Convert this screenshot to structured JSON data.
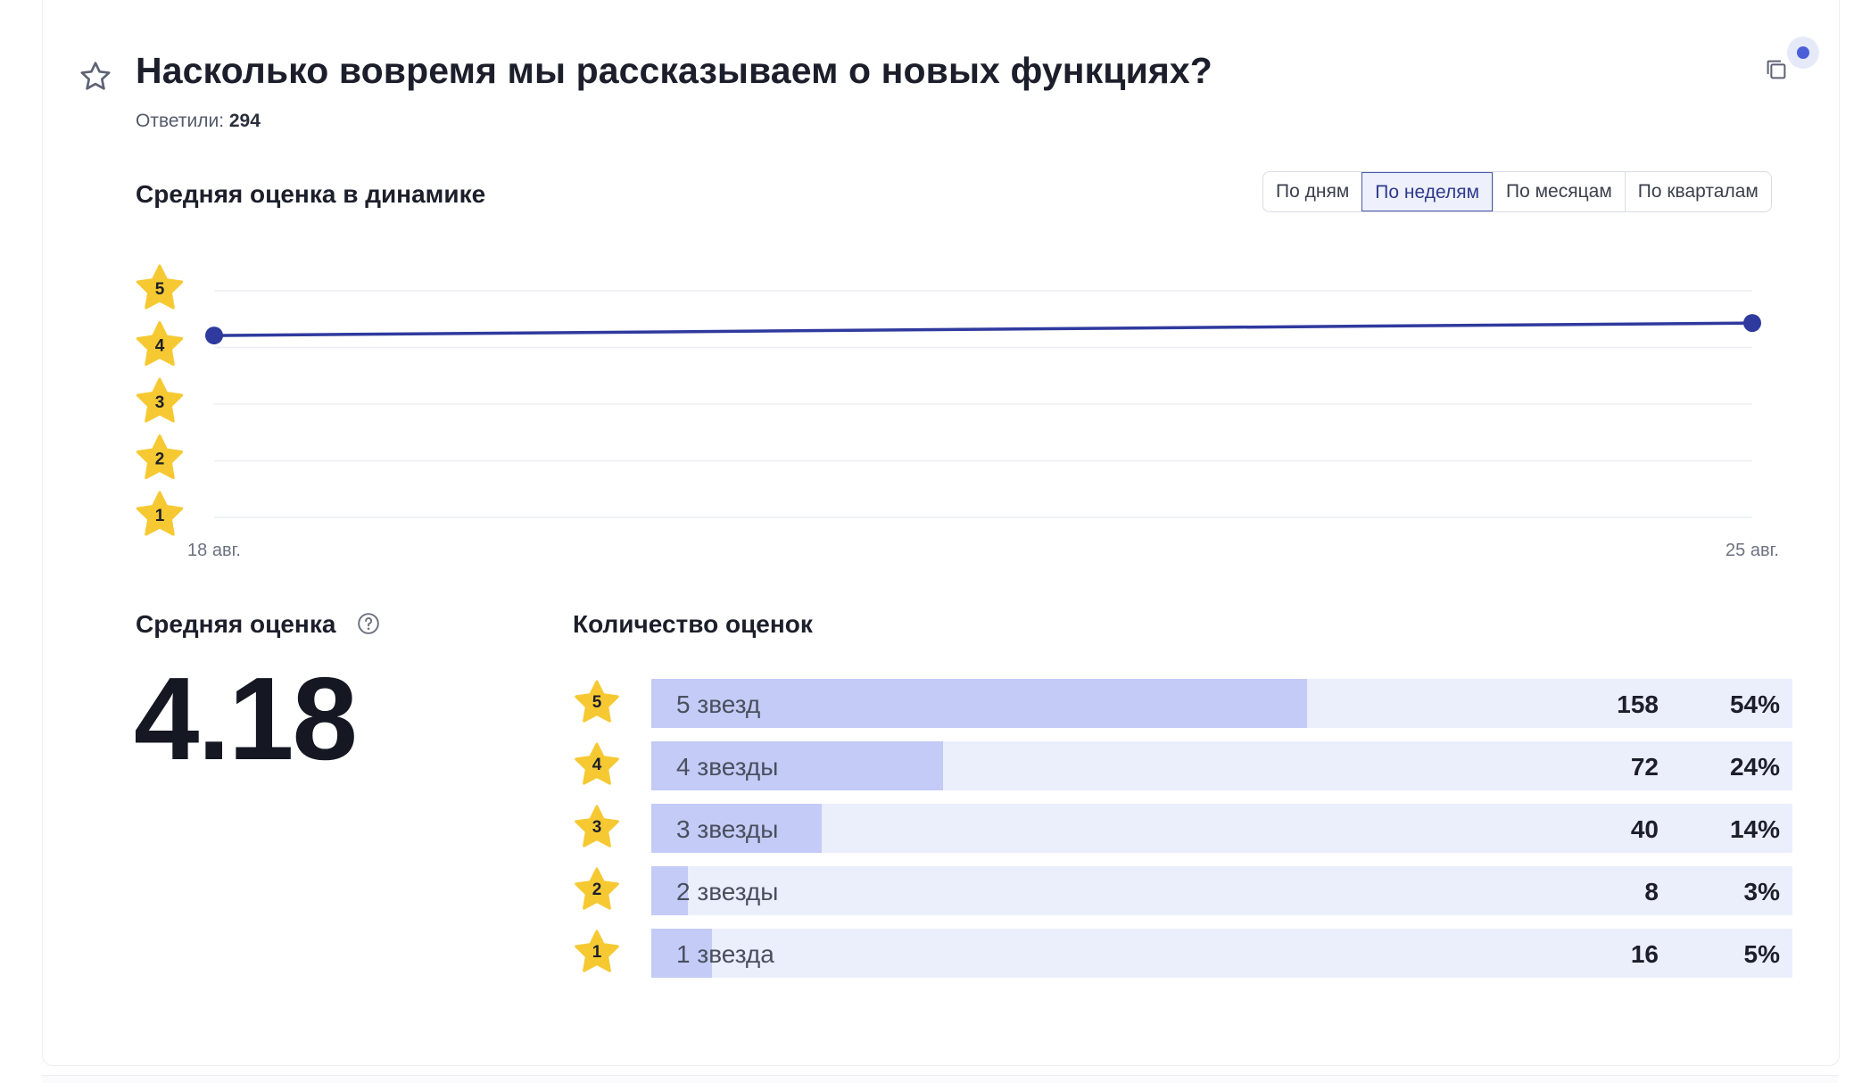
{
  "question": {
    "title": "Насколько вовремя мы рассказываем о новых функциях?",
    "answered_label": "Ответили:",
    "answered_count": "294"
  },
  "dynamics": {
    "title": "Средняя оценка в динамике",
    "period_options": [
      {
        "label": "По дням",
        "active": false
      },
      {
        "label": "По неделям",
        "active": true
      },
      {
        "label": "По месяцам",
        "active": false
      },
      {
        "label": "По кварталам",
        "active": false
      }
    ]
  },
  "chart_data": {
    "type": "line",
    "x": [
      "18 авг.",
      "25 авг."
    ],
    "series": [
      {
        "values": [
          4.18,
          4.4
        ]
      }
    ],
    "y_ticks": [
      "5",
      "4",
      "3",
      "2",
      "1"
    ],
    "ylim": [
      1,
      5
    ],
    "grid": true,
    "line_color": "#2f3a9e",
    "star_color": "#f6c932"
  },
  "average": {
    "title": "Средняя оценка",
    "value": "4.18",
    "help_icon": "question-circle-icon"
  },
  "counts": {
    "title": "Количество оценок",
    "rows": [
      {
        "stars": "5",
        "label": "5 звезд",
        "count": "158",
        "percent": "54%",
        "fraction": 0.54
      },
      {
        "stars": "4",
        "label": "4 звезды",
        "count": "72",
        "percent": "24%",
        "fraction": 0.24
      },
      {
        "stars": "3",
        "label": "3 звезды",
        "count": "40",
        "percent": "14%",
        "fraction": 0.14
      },
      {
        "stars": "2",
        "label": "2 звезды",
        "count": "8",
        "percent": "3%",
        "fraction": 0.03
      },
      {
        "stars": "1",
        "label": "1 звезда",
        "count": "16",
        "percent": "5%",
        "fraction": 0.05
      }
    ]
  },
  "icons": {
    "favorite": "star-outline-icon",
    "copy": "copy-icon"
  }
}
